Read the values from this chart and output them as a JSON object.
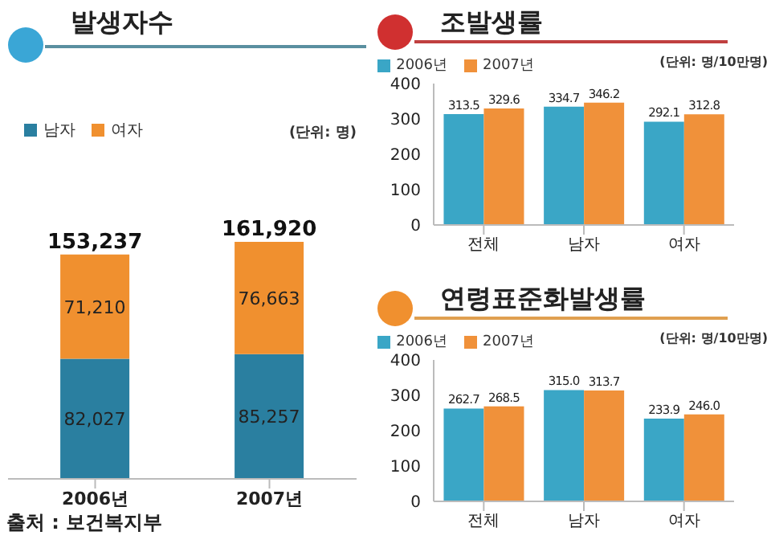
{
  "chart_data": [
    {
      "type": "bar",
      "title": "발생자수",
      "subtitle": "(단위: 명)",
      "categories": [
        "2006년",
        "2007년"
      ],
      "stacked": true,
      "legend": "top left",
      "tick_labels": "x",
      "totals": [
        "153,237",
        "161,920"
      ],
      "annotations": [
        "출처 : 보건복지부"
      ],
      "series": [
        {
          "name": "남자",
          "color": "#2a7fa0",
          "values": [
            82027,
            85257
          ],
          "value_labels": [
            "82,027",
            "85,257"
          ]
        },
        {
          "name": "여자",
          "color": "#f0902f",
          "values": [
            71210,
            76663
          ],
          "value_labels": [
            "71,210",
            "76,663"
          ]
        }
      ]
    },
    {
      "type": "bar",
      "title": "조발생률",
      "subtitle": "(단위: 명/10만명)",
      "categories": [
        "전체",
        "남자",
        "여자"
      ],
      "legend": "top",
      "ylim": [
        0,
        400
      ],
      "yticks": [
        0,
        100,
        200,
        300,
        400
      ],
      "series": [
        {
          "name": "2006년",
          "color": "#3aa6c6",
          "values": [
            313.5,
            334.7,
            292.1
          ],
          "value_labels": [
            "313.5",
            "334.7",
            "292.1"
          ]
        },
        {
          "name": "2007년",
          "color": "#f0913a",
          "values": [
            329.6,
            346.2,
            312.8
          ],
          "value_labels": [
            "329.6",
            "346.2",
            "312.8"
          ]
        }
      ]
    },
    {
      "type": "bar",
      "title": "연령표준화발생률",
      "subtitle": "(단위: 명/10만명)",
      "categories": [
        "전체",
        "남자",
        "여자"
      ],
      "legend": "top",
      "ylim": [
        0,
        400
      ],
      "yticks": [
        0,
        100,
        200,
        300,
        400
      ],
      "series": [
        {
          "name": "2006년",
          "color": "#3aa6c6",
          "values": [
            262.7,
            315.0,
            233.9
          ],
          "value_labels": [
            "262.7",
            "315.0",
            "233.9"
          ]
        },
        {
          "name": "2007년",
          "color": "#f0913a",
          "values": [
            268.5,
            313.7,
            246.0
          ],
          "value_labels": [
            "268.5",
            "313.7",
            "246.0"
          ]
        }
      ]
    }
  ]
}
